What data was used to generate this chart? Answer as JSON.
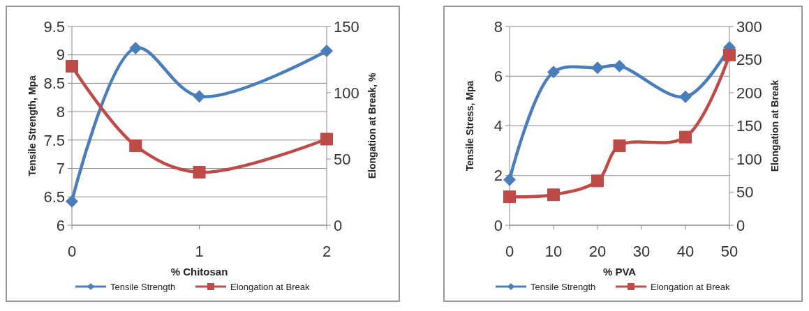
{
  "chart_data": [
    {
      "type": "line",
      "xlabel": "% Chitosan",
      "ylabel": "Tensile Strength, Mpa",
      "y2label": "Elongation at Break, %",
      "xlim": [
        0,
        2
      ],
      "xticks": [
        0,
        1,
        2
      ],
      "ylim": [
        6,
        9.5
      ],
      "yticks": [
        6,
        6.5,
        7,
        7.5,
        8,
        8.5,
        9,
        9.5
      ],
      "y2lim": [
        0,
        150
      ],
      "y2ticks": [
        0,
        50,
        100,
        150
      ],
      "grid": "y",
      "legend": "bottom",
      "x": [
        0,
        0.5,
        1,
        2
      ],
      "series": [
        {
          "name": "Tensile Strength",
          "color": "#4a7ebb",
          "marker": "diamond",
          "values": [
            6.42,
            9.12,
            8.27,
            9.07
          ]
        },
        {
          "name": "Elongation at Break",
          "color": "#be4b48",
          "marker": "square",
          "axis": "y2",
          "values": [
            120,
            60,
            40,
            65
          ]
        }
      ]
    },
    {
      "type": "line",
      "xlabel": "% PVA",
      "ylabel": "Tensile Stress, Mpa",
      "y2label": "Elongation at Break",
      "xlim": [
        0,
        50
      ],
      "xticks": [
        0,
        10,
        20,
        30,
        40,
        50
      ],
      "ylim": [
        0,
        8
      ],
      "yticks": [
        0,
        2,
        4,
        6,
        8
      ],
      "y2lim": [
        0,
        300
      ],
      "y2ticks": [
        0,
        50,
        100,
        150,
        200,
        250,
        300
      ],
      "grid": "y",
      "legend": "bottom",
      "x": [
        0,
        10,
        20,
        25,
        40,
        50
      ],
      "series": [
        {
          "name": "Tensile Strength",
          "color": "#4a7ebb",
          "marker": "diamond",
          "values": [
            1.83,
            6.17,
            6.34,
            6.41,
            5.17,
            7.16
          ]
        },
        {
          "name": "Elongation at Break",
          "color": "#be4b48",
          "marker": "square",
          "axis": "y2",
          "values": [
            43,
            46,
            67,
            120,
            133,
            257
          ]
        }
      ]
    }
  ]
}
